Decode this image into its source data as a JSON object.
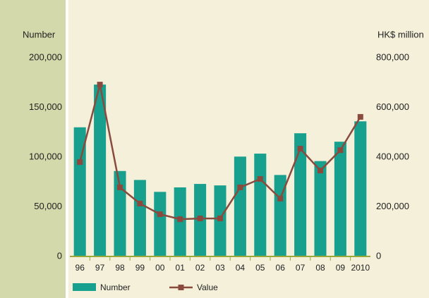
{
  "chart_data": {
    "type": "bar_line",
    "y_label": "Number",
    "y2_label": "HK$ million",
    "categories": [
      "96",
      "97",
      "98",
      "99",
      "00",
      "01",
      "02",
      "03",
      "04",
      "05",
      "06",
      "07",
      "08",
      "09",
      "2010"
    ],
    "series": [
      {
        "name": "Number",
        "color": "#17a08e",
        "type": "bar",
        "values": [
          130000,
          173000,
          86000,
          77000,
          65000,
          69500,
          73000,
          71500,
          100500,
          103500,
          82000,
          124000,
          96000,
          115500,
          136000
        ]
      },
      {
        "name": "Value",
        "color": "#8a4a3e",
        "type": "line",
        "axis": "y2",
        "values": [
          380000,
          692000,
          278000,
          213000,
          170000,
          150000,
          153000,
          153000,
          278000,
          312000,
          233000,
          434000,
          346000,
          428000,
          562000
        ]
      }
    ],
    "ylim": [
      0,
      200000
    ],
    "yticks": [
      0,
      {
        "value": 50000,
        "label": "50,000"
      },
      {
        "value": 100000,
        "label": "100,000"
      },
      {
        "value": 150000,
        "label": "150,000"
      },
      {
        "value": 200000,
        "label": "200,000"
      }
    ],
    "y2lim": [
      0,
      800000
    ],
    "y2ticks": [
      0,
      {
        "value": 200000,
        "label": "200,000"
      },
      {
        "value": 400000,
        "label": "400,000"
      },
      {
        "value": 600000,
        "label": "600,000"
      },
      {
        "value": 800000,
        "label": "800,000"
      }
    ],
    "grid": false
  }
}
